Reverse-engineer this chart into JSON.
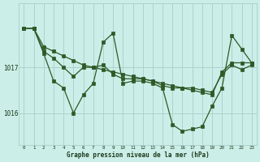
{
  "title": "Graphe pression niveau de la mer (hPa)",
  "background_color": "#cceee8",
  "grid_color": "#aad4cc",
  "line_color": "#2d5a27",
  "x_labels": [
    "0",
    "1",
    "2",
    "3",
    "4",
    "5",
    "6",
    "7",
    "8",
    "9",
    "10",
    "11",
    "12",
    "13",
    "14",
    "15",
    "16",
    "17",
    "18",
    "19",
    "20",
    "21",
    "22",
    "23"
  ],
  "yticks": [
    1016,
    1017
  ],
  "ylim": [
    1015.3,
    1018.4
  ],
  "xlim": [
    -0.5,
    23.5
  ],
  "series": [
    [
      1017.85,
      1017.85,
      1017.45,
      1017.35,
      1017.25,
      1017.15,
      1017.05,
      1017.0,
      1016.95,
      1016.9,
      1016.85,
      1016.8,
      1016.75,
      1016.7,
      1016.65,
      1016.6,
      1016.55,
      1016.5,
      1016.45,
      1016.4,
      1016.9,
      1017.1,
      1017.1,
      1017.1
    ],
    [
      1017.85,
      1017.85,
      1017.35,
      1017.2,
      1017.0,
      1016.8,
      1017.0,
      1017.0,
      1017.05,
      1016.85,
      1016.75,
      1016.75,
      1016.75,
      1016.7,
      1016.6,
      1016.55,
      1016.55,
      1016.55,
      1016.5,
      1016.45,
      1016.85,
      1017.05,
      1016.95,
      1017.05
    ],
    [
      1017.85,
      1017.85,
      1017.3,
      1016.7,
      1016.55,
      1016.0,
      1016.4,
      1016.65,
      1017.55,
      1017.75,
      1016.65,
      1016.7,
      1016.7,
      1016.65,
      1016.55,
      1015.75,
      1015.6,
      1015.65,
      1015.7,
      1016.15,
      1016.55,
      1017.7,
      1017.4,
      1017.1
    ]
  ]
}
